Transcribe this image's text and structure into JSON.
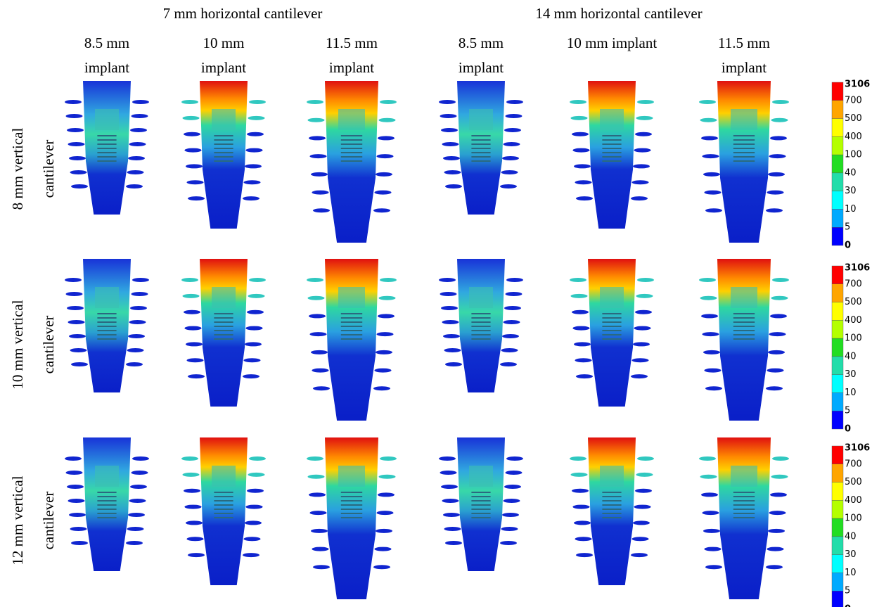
{
  "header": {
    "groups": [
      "7 mm horizontal cantilever",
      "14 mm horizontal cantilever"
    ],
    "columns": [
      [
        "8.5 mm",
        "implant"
      ],
      [
        "10 mm",
        "implant"
      ],
      [
        "11.5 mm",
        "implant"
      ],
      [
        "8.5 mm",
        "implant"
      ],
      [
        "10 mm implant"
      ],
      [
        "11.5 mm",
        "implant"
      ]
    ]
  },
  "rows": [
    [
      "8 mm vertical",
      "cantilever"
    ],
    [
      "10 mm vertical",
      "cantilever"
    ],
    [
      "12 mm vertical",
      "cantilever"
    ]
  ],
  "legend": {
    "labels": [
      "3106",
      "700",
      "500",
      "400",
      "100",
      "40",
      "30",
      "10",
      "5",
      "0"
    ],
    "colors": [
      "#ff0000",
      "#ffa500",
      "#ffff00",
      "#b4ff00",
      "#22dd22",
      "#22ddaa",
      "#00ffff",
      "#00aaff",
      "#0000ff"
    ]
  }
}
